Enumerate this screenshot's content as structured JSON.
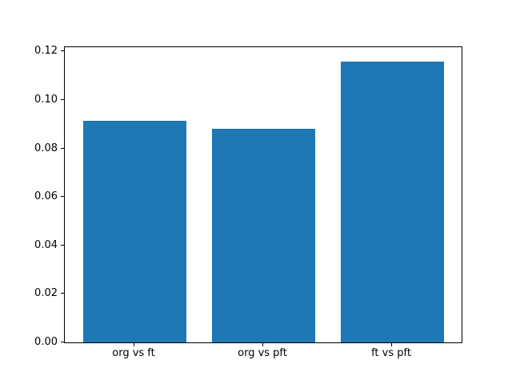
{
  "chart_data": {
    "type": "bar",
    "categories": [
      "org vs ft",
      "org vs pft",
      "ft vs pft"
    ],
    "values": [
      0.0915,
      0.088,
      0.116
    ],
    "title": "",
    "xlabel": "",
    "ylabel": "",
    "ylim": [
      0,
      0.1218
    ],
    "yticks": [
      0.0,
      0.02,
      0.04,
      0.06,
      0.08,
      0.1,
      0.12
    ],
    "ytick_label_format": "2-decimals",
    "bar_color": "#1f77b4",
    "axes_background": "#ffffff",
    "figure_background": "#ffffff",
    "spine_color": "#000000",
    "grid": false,
    "legend": null
  }
}
